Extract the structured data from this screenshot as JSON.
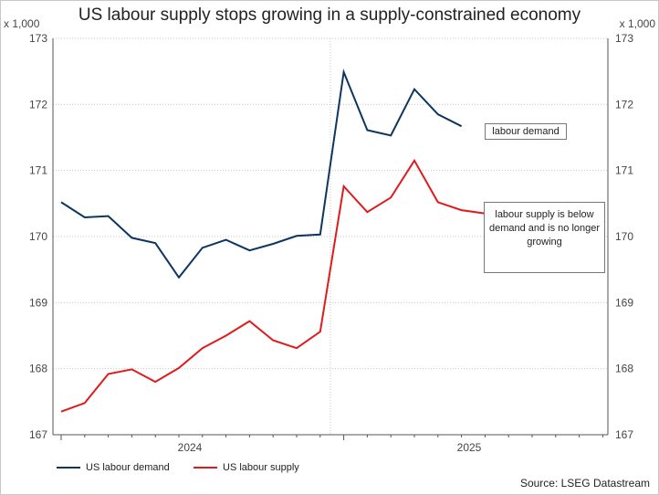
{
  "chart_data": {
    "type": "line",
    "title": "US labour supply stops growing in a supply-constrained economy",
    "ylabel_left": "x 1,000",
    "ylabel_right": "x 1,000",
    "ylim": [
      167,
      173
    ],
    "yticks": [
      "173",
      "172",
      "171",
      "170",
      "169",
      "168",
      "167"
    ],
    "xtick_labels": [
      "2024",
      "2025"
    ],
    "series": [
      {
        "name": "US labour demand",
        "color": "#0d3560",
        "values": [
          170.52,
          170.29,
          170.31,
          169.98,
          169.9,
          169.38,
          169.83,
          169.95,
          169.79,
          169.89,
          170.01,
          170.03,
          172.49,
          171.61,
          171.53,
          172.23,
          171.85,
          171.67
        ]
      },
      {
        "name": "US labour supply",
        "color": "#e01b1b",
        "values": [
          167.35,
          167.48,
          167.92,
          167.99,
          167.8,
          168.01,
          168.31,
          168.5,
          168.72,
          168.43,
          168.31,
          168.56,
          170.76,
          170.37,
          170.59,
          171.15,
          170.52,
          170.4,
          170.35
        ]
      }
    ],
    "annotations": [
      "labour demand",
      "labour supply is below demand and is no longer growing"
    ],
    "source": "Source: LSEG Datastream"
  }
}
